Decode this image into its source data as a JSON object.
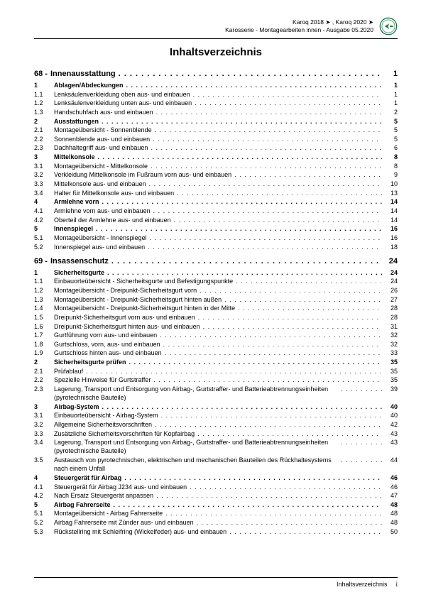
{
  "header": {
    "line1": "Karoq 2018 ➤ , Karoq 2020 ➤",
    "line2": "Karosserie - Montagearbeiten innen - Ausgabe 05.2020",
    "brand": "ŠKODA"
  },
  "title": "Inhaltsverzeichnis",
  "sections": [
    {
      "num": "68 -",
      "label": "Innenausstattung",
      "page": "1",
      "rows": [
        {
          "n": "1",
          "t": "Ablagen/Abdeckungen",
          "p": "1",
          "b": true
        },
        {
          "n": "1.1",
          "t": "Lenksäulenverkleidung oben aus- und einbauen",
          "p": "1"
        },
        {
          "n": "1.2",
          "t": "Lenksäulenverkleidung unten aus- und einbauen",
          "p": "1"
        },
        {
          "n": "1.3",
          "t": "Handschuhfach aus- und einbauen",
          "p": "2"
        },
        {
          "n": "2",
          "t": "Ausstattungen",
          "p": "5",
          "b": true
        },
        {
          "n": "2.1",
          "t": "Montageübersicht - Sonnenblende",
          "p": "5"
        },
        {
          "n": "2.2",
          "t": "Sonnenblende aus- und einbauen",
          "p": "5"
        },
        {
          "n": "2.3",
          "t": "Dachhaltegriff aus- und einbauen",
          "p": "6"
        },
        {
          "n": "3",
          "t": "Mittelkonsole",
          "p": "8",
          "b": true
        },
        {
          "n": "3.1",
          "t": "Montageübersicht - Mittelkonsole",
          "p": "8"
        },
        {
          "n": "3.2",
          "t": "Verkleidung Mittelkonsole im Fußraum vorn aus- und einbauen",
          "p": "9"
        },
        {
          "n": "3.3",
          "t": "Mittelkonsole aus- und einbauen",
          "p": "10"
        },
        {
          "n": "3.4",
          "t": "Halter für Mittelkonsole aus- und einbauen",
          "p": "13"
        },
        {
          "n": "4",
          "t": "Armlehne vorn",
          "p": "14",
          "b": true
        },
        {
          "n": "4.1",
          "t": "Armlehne vorn aus- und einbauen",
          "p": "14"
        },
        {
          "n": "4.2",
          "t": "Oberteil der Armlehne aus- und einbauen",
          "p": "14"
        },
        {
          "n": "5",
          "t": "Innenspiegel",
          "p": "16",
          "b": true
        },
        {
          "n": "5.1",
          "t": "Montageübersicht - Innenspiegel",
          "p": "16"
        },
        {
          "n": "5.2",
          "t": "Innenspiegel aus- und einbauen",
          "p": "18"
        }
      ]
    },
    {
      "num": "69 -",
      "label": "Insassenschutz",
      "page": "24",
      "rows": [
        {
          "n": "1",
          "t": "Sicherheitsgurte",
          "p": "24",
          "b": true
        },
        {
          "n": "1.1",
          "t": "Einbauorteübersicht - Sicherheitsgurte und Befestigungspunkte",
          "p": "24"
        },
        {
          "n": "1.2",
          "t": "Montageübersicht - Dreipunkt-Sicherheitsgurt vorn",
          "p": "26"
        },
        {
          "n": "1.3",
          "t": "Montageübersicht - Dreipunkt-Sicherheitsgurt hinten außen",
          "p": "27"
        },
        {
          "n": "1.4",
          "t": "Montageübersicht - Dreipunkt-Sicherheitsgurt hinten in der Mitte",
          "p": "28"
        },
        {
          "n": "1.5",
          "t": "Dreipunkt-Sicherheitsgurt vorn aus- und einbauen",
          "p": "28"
        },
        {
          "n": "1.6",
          "t": "Dreipunkt-Sicherheitsgurt hinten aus- und einbauen",
          "p": "31"
        },
        {
          "n": "1.7",
          "t": "Gurtführung vorn aus- und einbauen",
          "p": "32"
        },
        {
          "n": "1.8",
          "t": "Gurtschloss, vorn, aus- und einbauen",
          "p": "32"
        },
        {
          "n": "1.9",
          "t": "Gurtschloss hinten aus- und einbauen",
          "p": "33"
        },
        {
          "n": "2",
          "t": "Sicherheitsgurte prüfen",
          "p": "35",
          "b": true
        },
        {
          "n": "2.1",
          "t": "Prüfablauf",
          "p": "35"
        },
        {
          "n": "2.2",
          "t": "Spezielle Hinweise für Gurtstraffer",
          "p": "35"
        },
        {
          "n": "2.3",
          "t": "Lagerung, Transport und Entsorgung von Airbag-, Gurtstraffer- und Batterieabtrennungseinheiten (pyrotechnische Bauteile)",
          "p": "39"
        },
        {
          "n": "3",
          "t": "Airbag-System",
          "p": "40",
          "b": true
        },
        {
          "n": "3.1",
          "t": "Einbauorteübersicht - Airbag-System",
          "p": "40"
        },
        {
          "n": "3.2",
          "t": "Allgemeine Sicherheitsvorschriften",
          "p": "42"
        },
        {
          "n": "3.3",
          "t": "Zusätzliche Sicherheitsvorschriften für Kopfairbag",
          "p": "43"
        },
        {
          "n": "3.4",
          "t": "Lagerung, Transport und Entsorgung von Airbag-, Gurtstraffer- und Batterieabtrennungseinheiten (pyrotechnische Bauteile)",
          "p": "43"
        },
        {
          "n": "3.5",
          "t": "Austausch von pyrotechnischen, elektrischen und mechanischen Bauteilen des Rückhaltesystems nach einem Unfall",
          "p": "44"
        },
        {
          "n": "4",
          "t": "Steuergerät für Airbag",
          "p": "46",
          "b": true
        },
        {
          "n": "4.1",
          "t": "Steuergerät für Airbag J234 aus- und einbauen",
          "p": "46"
        },
        {
          "n": "4.2",
          "t": "Nach Ersatz Steuergerät anpassen",
          "p": "47"
        },
        {
          "n": "5",
          "t": "Airbag Fahrerseite",
          "p": "48",
          "b": true
        },
        {
          "n": "5.1",
          "t": "Montageübersicht - Airbag Fahrerseite",
          "p": "48"
        },
        {
          "n": "5.2",
          "t": "Airbag Fahrerseite mit Zünder aus- und einbauen",
          "p": "48"
        },
        {
          "n": "5.3",
          "t": "Rückstellring mit Schleifring (Wickelfeder) aus- und einbauen",
          "p": "50"
        }
      ]
    }
  ],
  "footer": {
    "label": "Inhaltsverzeichnis",
    "page": "i"
  },
  "colors": {
    "brand": "#0a7d3c"
  }
}
